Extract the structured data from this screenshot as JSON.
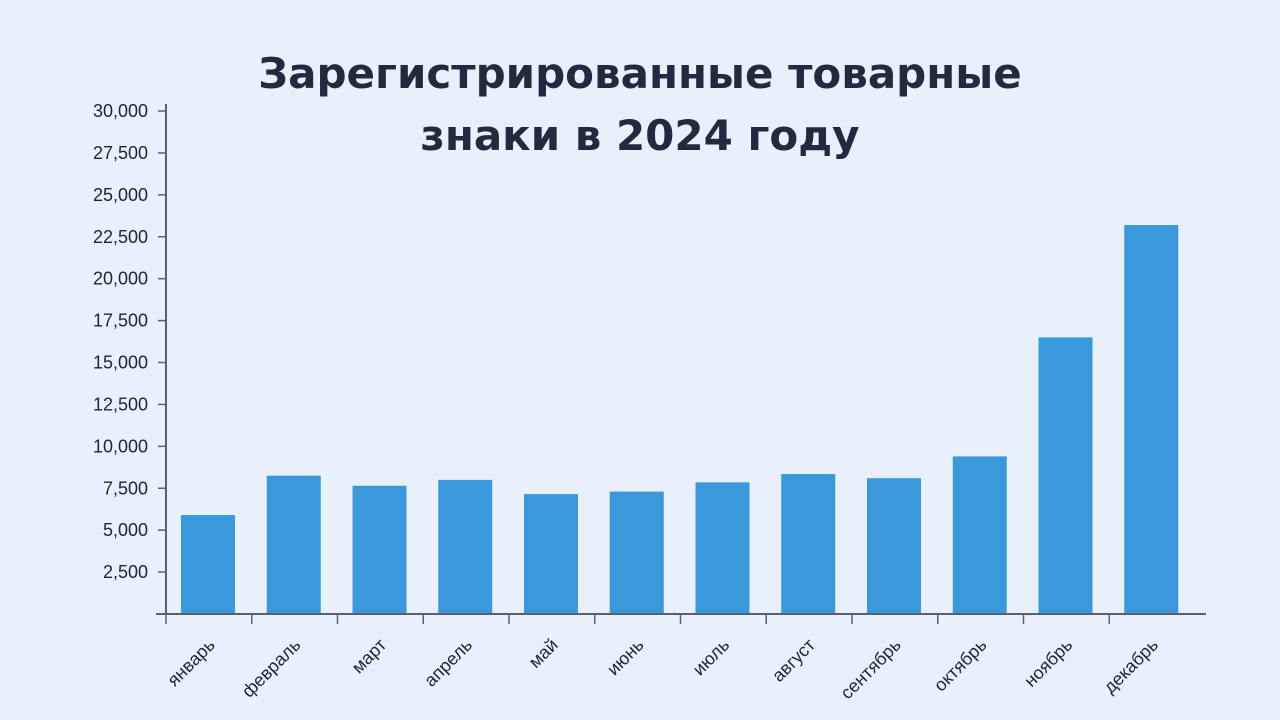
{
  "title": {
    "line1": "Зарегистрированные товарные",
    "line2": "знаки в 2024 году"
  },
  "colors": {
    "background": "#e8f1fb",
    "bar": "#3a99dc",
    "axis": "#5a5f6b",
    "title": "#23293f"
  },
  "chart_data": {
    "type": "bar",
    "title": "Зарегистрированные товарные знаки в 2024 году",
    "xlabel": "",
    "ylabel": "",
    "ylim": [
      0,
      30000
    ],
    "grid": false,
    "categories": [
      "январь",
      "февраль",
      "март",
      "апрель",
      "май",
      "июнь",
      "июль",
      "август",
      "сентябрь",
      "октябрь",
      "ноябрь",
      "декабрь"
    ],
    "values": [
      5900,
      8250,
      7650,
      8000,
      7150,
      7300,
      7850,
      8350,
      8100,
      9400,
      16500,
      23200
    ],
    "y_ticks": [
      2500,
      5000,
      7500,
      10000,
      12500,
      15000,
      17500,
      20000,
      22500,
      25000,
      27500,
      30000
    ],
    "y_tick_labels": [
      "2,500",
      "5,000",
      "7,500",
      "10,000",
      "12,500",
      "15,000",
      "17,500",
      "20,000",
      "22,500",
      "25,000",
      "27,500",
      "30,000"
    ]
  }
}
